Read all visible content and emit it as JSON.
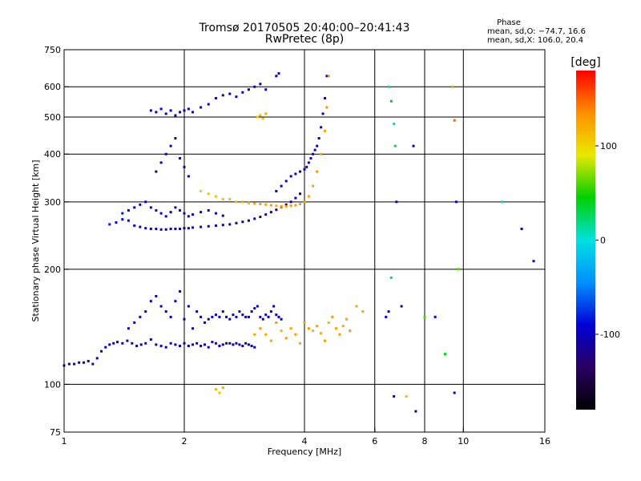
{
  "chart_data": {
    "type": "scatter",
    "title": "Tromsø 20170505 20:40:00–20:41:43",
    "subtitle": "RwPretec (8p)",
    "xlabel": "Frequency [MHz]",
    "ylabel": "Stationary phase Virtual Height [km]",
    "x_scale": "log",
    "y_scale": "log",
    "xlim": [
      1,
      16
    ],
    "ylim": [
      75,
      750
    ],
    "x_ticks": [
      1,
      2,
      4,
      6,
      8,
      10,
      16
    ],
    "y_ticks": [
      75,
      100,
      200,
      300,
      400,
      500,
      600,
      750
    ],
    "x_grid": [
      2,
      4,
      6,
      8,
      10
    ],
    "y_grid": [
      100,
      200,
      300,
      400,
      500,
      600
    ],
    "grid": true,
    "phase_stats": {
      "title": "Phase",
      "o_mode": "mean, sd,O: −74.7, 16.6",
      "x_mode": "mean, sd,X: 106.0, 20.4"
    },
    "colorbar": {
      "label": "[deg]",
      "range": [
        -180,
        180
      ],
      "ticks": [
        100,
        0,
        -100
      ],
      "colors": [
        "#000000",
        "#2a0060",
        "#0000d8",
        "#0090ff",
        "#00e0e0",
        "#00d000",
        "#e8e800",
        "#ff9000",
        "#ff0000"
      ]
    },
    "series": [
      {
        "x": [
          1.0,
          1.03,
          1.06,
          1.09,
          1.12,
          1.15,
          1.18,
          1.21,
          1.24,
          1.27,
          1.3,
          1.33,
          1.36,
          1.4,
          1.44,
          1.48,
          1.52,
          1.56,
          1.6,
          1.65,
          1.7,
          1.75,
          1.8,
          1.85,
          1.9,
          1.95,
          2.0,
          2.05,
          2.1,
          2.15,
          2.2,
          2.25,
          2.3,
          2.35,
          2.4,
          2.45,
          2.5,
          2.55,
          2.6,
          2.65,
          2.7,
          2.75,
          2.8,
          2.85,
          2.9,
          2.95,
          3.0
        ],
        "y": [
          112,
          113,
          113,
          114,
          114,
          115,
          113,
          117,
          122,
          125,
          127,
          128,
          129,
          128,
          130,
          128,
          126,
          127,
          128,
          131,
          127,
          126,
          125,
          128,
          127,
          126,
          128,
          126,
          127,
          128,
          126,
          127,
          125,
          129,
          128,
          126,
          127,
          128,
          128,
          127,
          128,
          127,
          126,
          128,
          127,
          126,
          125
        ],
        "phase": [
          -105,
          -100,
          -95,
          -110,
          -105,
          -98,
          -115,
          -102,
          -100,
          -95,
          -105,
          -110,
          -98,
          -100,
          -102,
          -95,
          -105,
          -100,
          -108,
          -96,
          -102,
          -104,
          -98,
          -100,
          -105,
          -99,
          -101,
          -97,
          -103,
          -106,
          -99,
          -100,
          -102,
          -98,
          -95,
          -104,
          -100,
          -98,
          -102,
          -96,
          -100,
          -104,
          -97,
          -101,
          -99,
          -103,
          -100
        ]
      },
      {
        "x": [
          1.45,
          1.5,
          1.55,
          1.6,
          1.65,
          1.7,
          1.75,
          1.8,
          1.85,
          1.9,
          1.95,
          2.0,
          2.05,
          2.1,
          2.15,
          2.2,
          2.25,
          2.3,
          2.35,
          2.4,
          2.45,
          2.5,
          2.55,
          2.6,
          2.65,
          2.7,
          2.75,
          2.8,
          2.85,
          2.9,
          2.95,
          3.0,
          3.05,
          3.1,
          3.15,
          3.2,
          3.25,
          3.3,
          3.35,
          3.4,
          3.45,
          3.5
        ],
        "y": [
          140,
          145,
          150,
          155,
          165,
          170,
          160,
          155,
          150,
          165,
          175,
          148,
          160,
          140,
          155,
          150,
          145,
          148,
          150,
          152,
          150,
          155,
          150,
          148,
          152,
          150,
          155,
          152,
          150,
          150,
          155,
          158,
          160,
          150,
          148,
          152,
          150,
          155,
          160,
          152,
          150,
          148
        ],
        "phase": [
          -90,
          -95,
          -100,
          -105,
          -92,
          -98,
          -110,
          -95,
          -100,
          -97,
          -104,
          -96,
          -99,
          -102,
          -95,
          -100,
          -98,
          -103,
          -97,
          -100,
          -105,
          -94,
          -99,
          -101,
          -96,
          -100,
          -98,
          -102,
          -97,
          -99,
          -104,
          -100,
          -95,
          -98,
          -101,
          -97,
          -100,
          -99,
          -103,
          -96,
          -100,
          -98
        ]
      },
      {
        "x": [
          1.3,
          1.35,
          1.4,
          1.45,
          1.5,
          1.55,
          1.6,
          1.65,
          1.7,
          1.75,
          1.8,
          1.85,
          1.9,
          1.95,
          2.0,
          2.05,
          2.1,
          2.2,
          2.3,
          2.4,
          2.5,
          2.6,
          2.7,
          2.8,
          2.9,
          3.0,
          3.1,
          3.2,
          3.3,
          3.4,
          3.5,
          3.6,
          3.7,
          3.8,
          3.9
        ],
        "y": [
          262,
          265,
          270,
          268,
          260,
          258,
          256,
          255,
          255,
          254,
          254,
          255,
          255,
          255,
          256,
          256,
          257,
          258,
          259,
          260,
          261,
          262,
          264,
          266,
          268,
          271,
          274,
          278,
          282,
          286,
          291,
          295,
          300,
          307,
          315
        ],
        "phase": [
          -80,
          -85,
          -90,
          -95,
          -100,
          -98,
          -102,
          -105,
          -99,
          -103,
          -106,
          -104,
          -107,
          -102,
          -105,
          -108,
          -104,
          -106,
          -110,
          -108,
          -112,
          -109,
          -115,
          -113,
          -118,
          -120,
          -122,
          -125,
          -123,
          -128,
          -126,
          -125,
          -124,
          -120,
          -118
        ]
      },
      {
        "x": [
          1.4,
          1.45,
          1.5,
          1.55,
          1.6,
          1.65,
          1.7,
          1.75,
          1.8,
          1.85,
          1.9,
          1.95,
          2.0,
          2.05,
          2.1,
          2.2,
          2.3,
          2.4,
          2.5
        ],
        "y": [
          280,
          285,
          290,
          295,
          300,
          290,
          285,
          280,
          275,
          282,
          290,
          285,
          280,
          275,
          278,
          282,
          285,
          280,
          276
        ],
        "phase": [
          -85,
          -90,
          -92,
          -95,
          -98,
          -96,
          -100,
          -102,
          -104,
          -98,
          -100,
          -103,
          -97,
          -101,
          -99,
          -102,
          -100,
          -98,
          -104
        ]
      },
      {
        "x": [
          3.4,
          3.5,
          3.6,
          3.7,
          3.8,
          3.9,
          4.0,
          4.05,
          4.1,
          4.15,
          4.2,
          4.25,
          4.3,
          4.35,
          4.4,
          4.45,
          4.5,
          4.55
        ],
        "y": [
          320,
          330,
          340,
          350,
          355,
          360,
          365,
          370,
          380,
          390,
          400,
          410,
          420,
          440,
          470,
          510,
          560,
          640
        ],
        "phase": [
          -100,
          -102,
          -104,
          -106,
          -108,
          -103,
          -105,
          -107,
          -102,
          -104,
          -106,
          -108,
          -100,
          -103,
          -105,
          -107,
          -102,
          -104
        ]
      },
      {
        "x": [
          2.2,
          2.3,
          2.4,
          2.5,
          2.6,
          2.7,
          2.8,
          2.9,
          3.0,
          3.1,
          3.2,
          3.3,
          3.4,
          3.5,
          3.6,
          3.7,
          3.8,
          3.9,
          4.0,
          4.1,
          4.2,
          4.3,
          4.4,
          4.5,
          4.55,
          4.6
        ],
        "y": [
          320,
          315,
          310,
          305,
          305,
          300,
          300,
          298,
          297,
          296,
          295,
          294,
          293,
          292,
          292,
          293,
          294,
          296,
          300,
          310,
          330,
          360,
          400,
          460,
          530,
          640
        ],
        "phase": [
          105,
          110,
          108,
          112,
          115,
          110,
          120,
          118,
          125,
          122,
          128,
          130,
          125,
          132,
          128,
          135,
          130,
          125,
          128,
          130,
          125,
          132,
          128,
          125,
          130,
          135
        ]
      },
      {
        "x": [
          1.65,
          1.7,
          1.75,
          1.8,
          1.85,
          1.9,
          1.95,
          2.0,
          2.05,
          2.1,
          2.2,
          2.3,
          2.4,
          2.5,
          2.6,
          2.7,
          2.8,
          2.9,
          3.0,
          3.1,
          3.2
        ],
        "y": [
          520,
          515,
          525,
          510,
          520,
          505,
          515,
          520,
          525,
          515,
          530,
          540,
          560,
          570,
          575,
          565,
          580,
          590,
          600,
          610,
          590
        ],
        "phase": [
          -95,
          -100,
          -98,
          -102,
          -97,
          -104,
          -99,
          -101,
          -96,
          -103,
          -100,
          -98,
          -102,
          -97,
          -101,
          -99,
          -103,
          -100,
          -98,
          -102,
          -96
        ]
      },
      {
        "x": [
          1.7,
          1.75,
          1.8,
          1.85,
          1.9,
          1.95,
          2.0,
          2.05
        ],
        "y": [
          360,
          380,
          400,
          420,
          440,
          390,
          370,
          350
        ],
        "phase": [
          -110,
          -108,
          -112,
          -106,
          -114,
          -109,
          -111,
          -107
        ]
      },
      {
        "x": [
          3.05,
          3.1,
          3.15,
          3.2
        ],
        "y": [
          500,
          505,
          495,
          510
        ],
        "phase": [
          110,
          115,
          105,
          120
        ]
      },
      {
        "x": [
          3.4,
          3.45
        ],
        "y": [
          640,
          650
        ],
        "phase": [
          -105,
          -100
        ]
      },
      {
        "x": [
          2.4,
          2.45,
          2.5
        ],
        "y": [
          97,
          95,
          98
        ],
        "phase": [
          115,
          110,
          120
        ]
      },
      {
        "x": [
          3.0,
          3.1,
          3.2,
          3.3,
          3.4,
          3.5,
          3.6,
          3.7,
          3.8,
          3.9,
          4.0,
          4.1,
          4.2,
          4.3,
          4.4,
          4.5,
          4.6,
          4.7,
          4.8,
          4.9,
          5.0,
          5.1,
          5.2,
          5.4,
          5.6
        ],
        "y": [
          135,
          140,
          135,
          130,
          145,
          138,
          132,
          140,
          135,
          128,
          145,
          140,
          138,
          142,
          136,
          130,
          145,
          150,
          140,
          135,
          142,
          148,
          138,
          160,
          155
        ],
        "phase": [
          125,
          130,
          120,
          128,
          135,
          118,
          132,
          125,
          130,
          122,
          128,
          135,
          120,
          130,
          125,
          128,
          118,
          132,
          126,
          130,
          122,
          128,
          135,
          120,
          125
        ]
      },
      {
        "x": [
          6.5,
          6.6,
          6.7,
          6.75,
          6.8,
          7.5,
          9.4,
          9.5,
          9.6,
          9.7
        ],
        "y": [
          600,
          550,
          480,
          420,
          300,
          420,
          600,
          490,
          300,
          200
        ],
        "phase": [
          20,
          40,
          10,
          30,
          -100,
          -110,
          130,
          150,
          -115,
          60
        ]
      },
      {
        "x": [
          6.4,
          6.5,
          6.6,
          6.7,
          7.0,
          7.2,
          7.6,
          8.0,
          8.5,
          9.0,
          9.5,
          12.5,
          14.0,
          15.0
        ],
        "y": [
          150,
          155,
          190,
          93,
          160,
          93,
          85,
          150,
          150,
          120,
          95,
          300,
          255,
          210
        ],
        "phase": [
          -90,
          -100,
          20,
          -110,
          -120,
          110,
          -130,
          60,
          -95,
          40,
          -110,
          -10,
          -120,
          -115
        ]
      }
    ]
  }
}
